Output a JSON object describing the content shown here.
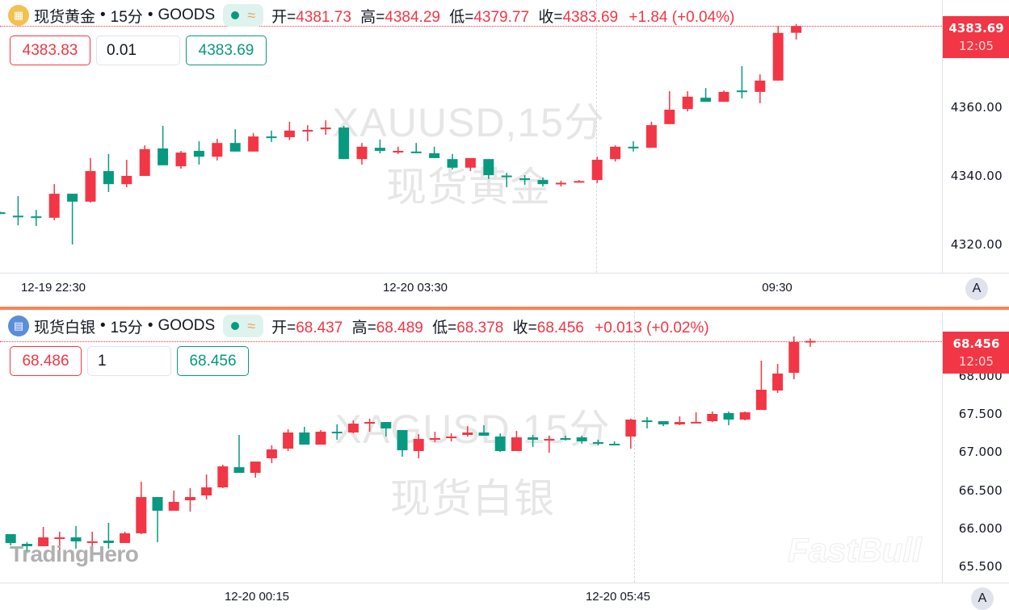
{
  "colors": {
    "up": "#f23645",
    "down": "#089981",
    "separator": "#f0875a"
  },
  "panes": [
    {
      "id": "gold",
      "icon": "gold-bars-icon",
      "name": "现货黄金",
      "interval": "15分",
      "source": "GOODS",
      "dot": "•",
      "indicator_icon": "wave-icon",
      "indicator_glyph": "≈",
      "ohlc": {
        "open_label": "开=",
        "open": "4381.73",
        "high_label": "高=",
        "high": "4384.29",
        "low_label": "低=",
        "low": "4379.77",
        "close_label": "收=",
        "close": "4383.69",
        "change": "+1.84 (+0.04%)"
      },
      "order": {
        "sell": "4383.83",
        "qty": "0.01",
        "buy": "4383.69"
      },
      "watermark": {
        "line1": "XAUUSD,15分",
        "line2": "现货黄金"
      },
      "price_tag": {
        "price": "4383.69",
        "countdown": "12:05"
      },
      "price_ticks": [
        "4360.00",
        "4340.00",
        "4320.00"
      ],
      "time_labels": [
        "12-19 22:30",
        "12-20 03:30",
        "09:30"
      ],
      "scale_button": "A"
    },
    {
      "id": "silver",
      "icon": "silver-bars-icon",
      "name": "现货白银",
      "interval": "15分",
      "source": "GOODS",
      "dot": "•",
      "indicator_icon": "wave-icon",
      "indicator_glyph": "≈",
      "ohlc": {
        "open_label": "开=",
        "open": "68.437",
        "high_label": "高=",
        "high": "68.489",
        "low_label": "低=",
        "low": "68.378",
        "close_label": "收=",
        "close": "68.456",
        "change": "+0.013 (+0.02%)"
      },
      "order": {
        "sell": "68.486",
        "qty": "1",
        "buy": "68.456"
      },
      "watermark": {
        "line1": "XAGUSD,15分",
        "line2": "现货白银"
      },
      "price_tag": {
        "price": "68.456",
        "countdown": "12:05"
      },
      "price_ticks": [
        "68.000",
        "67.500",
        "67.000",
        "66.500",
        "66.000",
        "65.500"
      ],
      "time_labels": [
        "12-20 00:15",
        "12-20 05:45"
      ],
      "scale_button": "A",
      "logos": {
        "left": "TradingHero",
        "right": "FastBull"
      }
    }
  ],
  "chart_data": [
    {
      "type": "candlestick",
      "symbol": "XAUUSD",
      "interval": "15分",
      "x_tick_labels": [
        "12-19 22:30",
        "12-20 03:30",
        "09:30"
      ],
      "y_ticks": [
        4320,
        4340,
        4360
      ],
      "ylim": [
        4315,
        4391
      ],
      "grid": false,
      "candles_ohlc": [
        [
          4329.4,
          4329.6,
          4328.9,
          4328.9
        ],
        [
          4328.4,
          4334.1,
          4325.6,
          4328.2
        ],
        [
          4328.2,
          4330.1,
          4325.4,
          4328.0
        ],
        [
          4327.8,
          4337.6,
          4327.1,
          4334.8
        ],
        [
          4334.8,
          4334.8,
          4320.0,
          4332.5
        ],
        [
          4332.5,
          4345.2,
          4332.2,
          4341.4
        ],
        [
          4341.4,
          4346.4,
          4335.3,
          4337.6
        ],
        [
          4337.6,
          4344.7,
          4336.7,
          4340.0
        ],
        [
          4340.0,
          4348.9,
          4340.0,
          4347.8
        ],
        [
          4348.0,
          4354.6,
          4343.1,
          4343.1
        ],
        [
          4342.8,
          4347.3,
          4342.1,
          4346.8
        ],
        [
          4347.3,
          4350.1,
          4343.3,
          4345.6
        ],
        [
          4345.6,
          4350.8,
          4344.5,
          4349.6
        ],
        [
          4349.6,
          4353.6,
          4347.1,
          4347.1
        ],
        [
          4347.1,
          4352.5,
          4347.1,
          4351.5
        ],
        [
          4351.5,
          4353.2,
          4349.9,
          4351.3
        ],
        [
          4351.3,
          4355.8,
          4350.4,
          4353.2
        ],
        [
          4353.3,
          4354.8,
          4350.1,
          4353.4
        ],
        [
          4353.6,
          4356.2,
          4352.0,
          4354.1
        ],
        [
          4354.1,
          4354.6,
          4344.9,
          4344.9
        ],
        [
          4344.9,
          4349.6,
          4343.3,
          4348.5
        ],
        [
          4348.2,
          4350.6,
          4346.6,
          4347.3
        ],
        [
          4347.2,
          4348.5,
          4346.4,
          4347.3
        ],
        [
          4347.1,
          4349.6,
          4346.6,
          4346.8
        ],
        [
          4346.6,
          4348.5,
          4345.2,
          4345.2
        ],
        [
          4344.9,
          4346.4,
          4341.9,
          4342.4
        ],
        [
          4342.4,
          4345.2,
          4341.4,
          4345.2
        ],
        [
          4344.9,
          4344.9,
          4339.1,
          4340.2
        ],
        [
          4340.1,
          4340.9,
          4336.7,
          4339.9
        ],
        [
          4339.3,
          4340.2,
          4337.4,
          4339.2
        ],
        [
          4338.8,
          4339.5,
          4336.9,
          4337.6
        ],
        [
          4337.8,
          4338.6,
          4336.9,
          4338.0
        ],
        [
          4338.3,
          4338.8,
          4338.1,
          4338.5
        ],
        [
          4338.8,
          4345.6,
          4337.9,
          4344.7
        ],
        [
          4344.9,
          4348.9,
          4344.2,
          4348.5
        ],
        [
          4348.5,
          4350.1,
          4347.1,
          4348.4
        ],
        [
          4348.2,
          4355.8,
          4348.2,
          4354.8
        ],
        [
          4355.1,
          4364.7,
          4355.1,
          4359.3
        ],
        [
          4359.5,
          4364.7,
          4358.8,
          4363.1
        ],
        [
          4362.8,
          4365.6,
          4361.6,
          4361.6
        ],
        [
          4361.6,
          4364.9,
          4361.6,
          4364.5
        ],
        [
          4364.9,
          4372.0,
          4362.6,
          4364.5
        ],
        [
          4364.5,
          4369.6,
          4361.2,
          4367.8
        ],
        [
          4367.8,
          4383.8,
          4367.8,
          4381.7
        ],
        [
          4381.73,
          4384.29,
          4379.77,
          4383.69
        ]
      ]
    },
    {
      "type": "candlestick",
      "symbol": "XAGUSD",
      "interval": "15分",
      "x_tick_labels": [
        "12-20 00:15",
        "12-20 05:45"
      ],
      "y_ticks": [
        65.5,
        66.0,
        66.5,
        67.0,
        67.5,
        68.0
      ],
      "ylim": [
        65.3,
        68.65
      ],
      "grid": false,
      "candles_ohlc": [
        [
          65.84,
          65.93,
          65.83,
          65.92
        ],
        [
          65.925,
          65.925,
          65.777,
          65.809
        ],
        [
          65.798,
          65.819,
          65.693,
          65.767
        ],
        [
          65.767,
          66.02,
          65.767,
          65.883
        ],
        [
          65.88,
          65.957,
          65.65,
          65.883
        ],
        [
          65.883,
          66.031,
          65.735,
          65.83
        ],
        [
          65.83,
          65.957,
          65.724,
          65.831
        ],
        [
          65.84,
          66.073,
          65.735,
          65.809
        ],
        [
          65.809,
          65.957,
          65.809,
          65.936
        ],
        [
          65.936,
          66.612,
          65.925,
          66.411
        ],
        [
          66.411,
          66.411,
          65.819,
          66.232
        ],
        [
          66.232,
          66.496,
          66.232,
          66.348
        ],
        [
          66.369,
          66.528,
          66.221,
          66.411
        ],
        [
          66.432,
          66.707,
          66.38,
          66.538
        ],
        [
          66.538,
          66.834,
          66.528,
          66.813
        ],
        [
          66.802,
          67.225,
          66.728,
          66.728
        ],
        [
          66.728,
          66.876,
          66.665,
          66.876
        ],
        [
          66.919,
          67.088,
          66.855,
          67.035
        ],
        [
          67.045,
          67.299,
          67.014,
          67.257
        ],
        [
          67.257,
          67.331,
          67.098,
          67.098
        ],
        [
          67.098,
          67.289,
          67.098,
          67.267
        ],
        [
          67.267,
          67.363,
          67.162,
          67.262
        ],
        [
          67.257,
          67.415,
          67.246,
          67.373
        ],
        [
          67.39,
          67.437,
          67.267,
          67.394
        ],
        [
          67.394,
          67.394,
          67.204,
          67.31
        ],
        [
          67.289,
          67.289,
          66.94,
          67.024
        ],
        [
          67.014,
          67.236,
          66.919,
          67.172
        ],
        [
          67.18,
          67.267,
          67.13,
          67.183
        ],
        [
          67.2,
          67.246,
          67.141,
          67.204
        ],
        [
          67.225,
          67.341,
          67.204,
          67.257
        ],
        [
          67.257,
          67.352,
          67.215,
          67.215
        ],
        [
          67.204,
          67.246,
          67.003,
          67.014
        ],
        [
          67.014,
          67.278,
          67.014,
          67.193
        ],
        [
          67.193,
          67.225,
          67.067,
          67.162
        ],
        [
          67.17,
          67.215,
          66.993,
          67.172
        ],
        [
          67.183,
          67.215,
          67.151,
          67.18
        ],
        [
          67.193,
          67.215,
          67.109,
          67.141
        ],
        [
          67.13,
          67.162,
          67.088,
          67.128
        ],
        [
          67.109,
          67.141,
          67.098,
          67.105
        ],
        [
          67.204,
          67.437,
          67.045,
          67.426
        ],
        [
          67.415,
          67.458,
          67.31,
          67.412
        ],
        [
          67.405,
          67.405,
          67.341,
          67.363
        ],
        [
          67.363,
          67.468,
          67.352,
          67.394
        ],
        [
          67.394,
          67.521,
          67.394,
          67.396
        ],
        [
          67.405,
          67.532,
          67.394,
          67.5
        ],
        [
          67.511,
          67.532,
          67.352,
          67.426
        ],
        [
          67.426,
          67.532,
          67.415,
          67.521
        ],
        [
          67.553,
          68.198,
          67.553,
          67.817
        ],
        [
          67.807,
          68.155,
          67.775,
          68.029
        ],
        [
          68.039,
          68.515,
          67.955,
          68.441
        ],
        [
          68.437,
          68.489,
          68.378,
          68.456
        ]
      ]
    }
  ]
}
